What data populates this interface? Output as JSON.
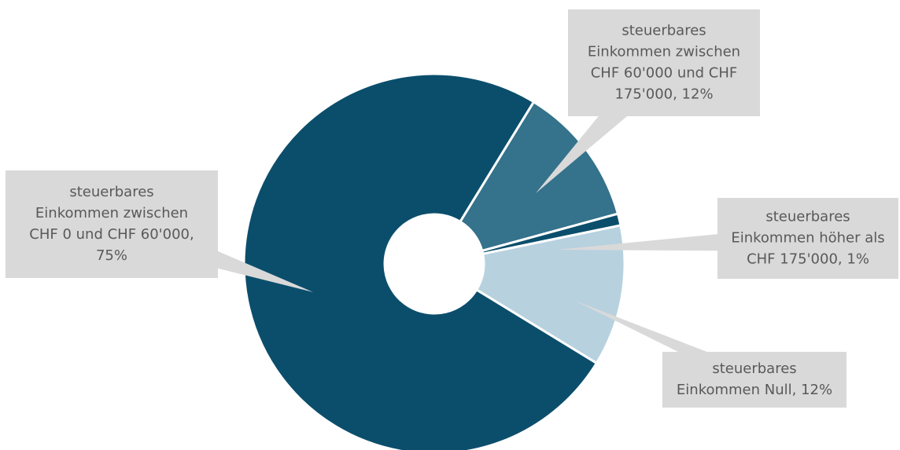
{
  "chart_data": {
    "type": "pie",
    "variant": "donut",
    "slices": [
      {
        "label_lines": [
          "steuerbares",
          "Einkommen zwischen",
          "CHF 0 und CHF 60'000,",
          "75%"
        ],
        "value": 75,
        "color": "#0b4e6c"
      },
      {
        "label_lines": [
          "steuerbares",
          "Einkommen zwischen",
          "CHF 60'000 und CHF",
          "175'000, 12%"
        ],
        "value": 12,
        "color": "#35728b"
      },
      {
        "label_lines": [
          "steuerbares",
          "Einkommen höher als",
          "CHF 175'000, 1%"
        ],
        "value": 1,
        "color": "#0b4e6c"
      },
      {
        "label_lines": [
          "steuerbares",
          "Einkommen Null, 12%"
        ],
        "value": 12,
        "color": "#b7d1df"
      }
    ],
    "callout_color": "#d9d9d9",
    "legend": "none"
  }
}
